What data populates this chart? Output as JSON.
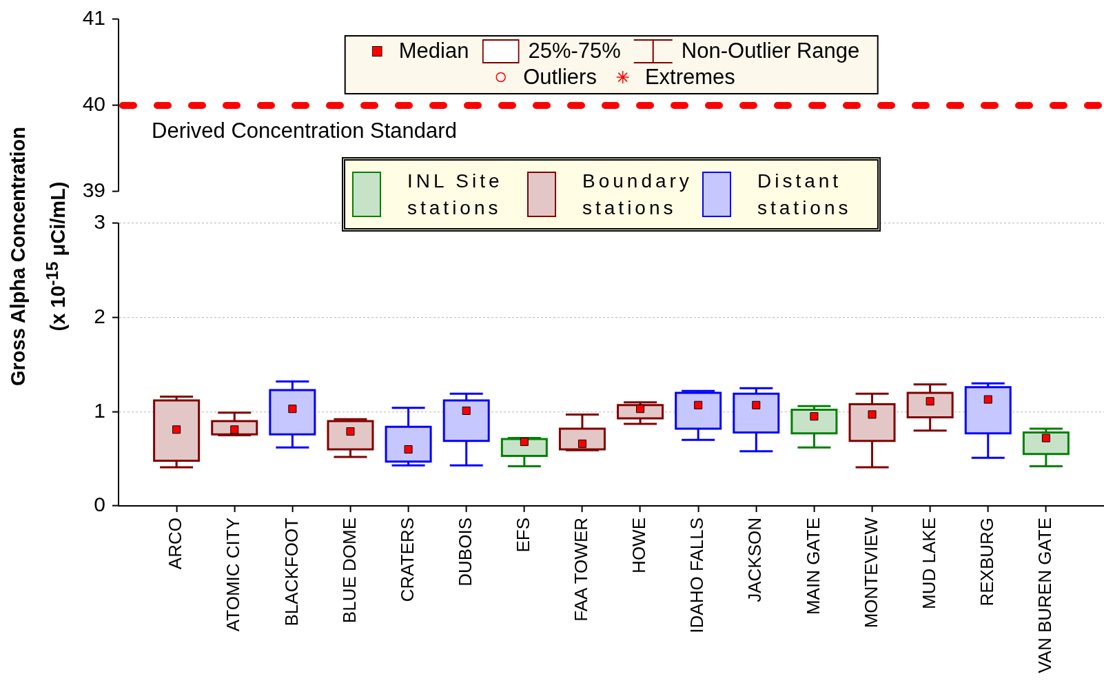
{
  "chart_data": [
    {
      "type": "box",
      "categories": [
        null,
        null,
        null,
        null,
        null,
        null,
        null,
        null,
        null,
        null,
        null,
        null,
        null,
        null,
        null,
        null
      ],
      "ylim": [
        39,
        41
      ],
      "yticks": [
        39,
        40,
        41
      ],
      "tick_labels": "y",
      "ref_lines": [
        {
          "axis": "y",
          "value": 40,
          "label": "Derived Concentration Standard",
          "color": "#ff0000",
          "line_style": "dashed"
        }
      ],
      "annotations": [
        "Median",
        "25%-75%",
        "Non-Outlier Range",
        "Outliers",
        "Extremes"
      ]
    },
    {
      "type": "box",
      "categories": [
        "ARCO",
        "ATOMIC CITY",
        "BLACKFOOT",
        "BLUE DOME",
        "CRATERS",
        "DUBOIS",
        "EFS",
        "FAA TOWER",
        "HOWE",
        "IDAHO FALLS",
        "JACKSON",
        "MAIN GATE",
        "MONTEVIEW",
        "MUD LAKE",
        "REXBURG",
        "VAN BUREN GATE"
      ],
      "ylabel": "Gross Alpha Concentration (x 10$^{-15}$ μCi/mL)",
      "ylim": [
        0,
        3
      ],
      "yticks": [
        0,
        1,
        2,
        3
      ],
      "grid": "y",
      "legend": "top",
      "series": [
        {
          "name": "INL Site stations",
          "color": "#008000",
          "boxes": [
            null,
            null,
            null,
            null,
            null,
            null,
            {
              "low": 0.42,
              "q1": 0.53,
              "median": 0.68,
              "q3": 0.71,
              "high": 0.72
            },
            null,
            null,
            null,
            null,
            {
              "low": 0.62,
              "q1": 0.77,
              "median": 0.95,
              "q3": 1.02,
              "high": 1.06
            },
            null,
            null,
            null,
            {
              "low": 0.42,
              "q1": 0.55,
              "median": 0.72,
              "q3": 0.78,
              "high": 0.82
            }
          ]
        },
        {
          "name": "Boundary stations",
          "color": "#800000",
          "boxes": [
            {
              "low": 0.41,
              "q1": 0.48,
              "median": 0.81,
              "q3": 1.12,
              "high": 1.16
            },
            {
              "low": 0.75,
              "q1": 0.76,
              "median": 0.81,
              "q3": 0.9,
              "high": 0.99
            },
            null,
            {
              "low": 0.52,
              "q1": 0.6,
              "median": 0.79,
              "q3": 0.9,
              "high": 0.92
            },
            null,
            null,
            null,
            {
              "low": 0.59,
              "q1": 0.6,
              "median": 0.66,
              "q3": 0.82,
              "high": 0.97
            },
            {
              "low": 0.87,
              "q1": 0.93,
              "median": 1.03,
              "q3": 1.07,
              "high": 1.1
            },
            null,
            null,
            null,
            {
              "low": 0.41,
              "q1": 0.69,
              "median": 0.97,
              "q3": 1.08,
              "high": 1.19
            },
            {
              "low": 0.8,
              "q1": 0.94,
              "median": 1.11,
              "q3": 1.2,
              "high": 1.29
            },
            null,
            null
          ]
        },
        {
          "name": "Distant stations",
          "color": "#0000ff",
          "boxes": [
            null,
            null,
            {
              "low": 0.62,
              "q1": 0.76,
              "median": 1.03,
              "q3": 1.23,
              "high": 1.32
            },
            null,
            {
              "low": 0.43,
              "q1": 0.47,
              "median": 0.6,
              "q3": 0.84,
              "high": 1.04
            },
            {
              "low": 0.43,
              "q1": 0.69,
              "median": 1.01,
              "q3": 1.12,
              "high": 1.19
            },
            null,
            null,
            null,
            {
              "low": 0.7,
              "q1": 0.82,
              "median": 1.07,
              "q3": 1.2,
              "high": 1.22
            },
            {
              "low": 0.58,
              "q1": 0.78,
              "median": 1.07,
              "q3": 1.19,
              "high": 1.25
            },
            null,
            null,
            null,
            {
              "low": 0.51,
              "q1": 0.77,
              "median": 1.13,
              "q3": 1.26,
              "high": 1.3
            },
            null
          ]
        }
      ]
    }
  ]
}
